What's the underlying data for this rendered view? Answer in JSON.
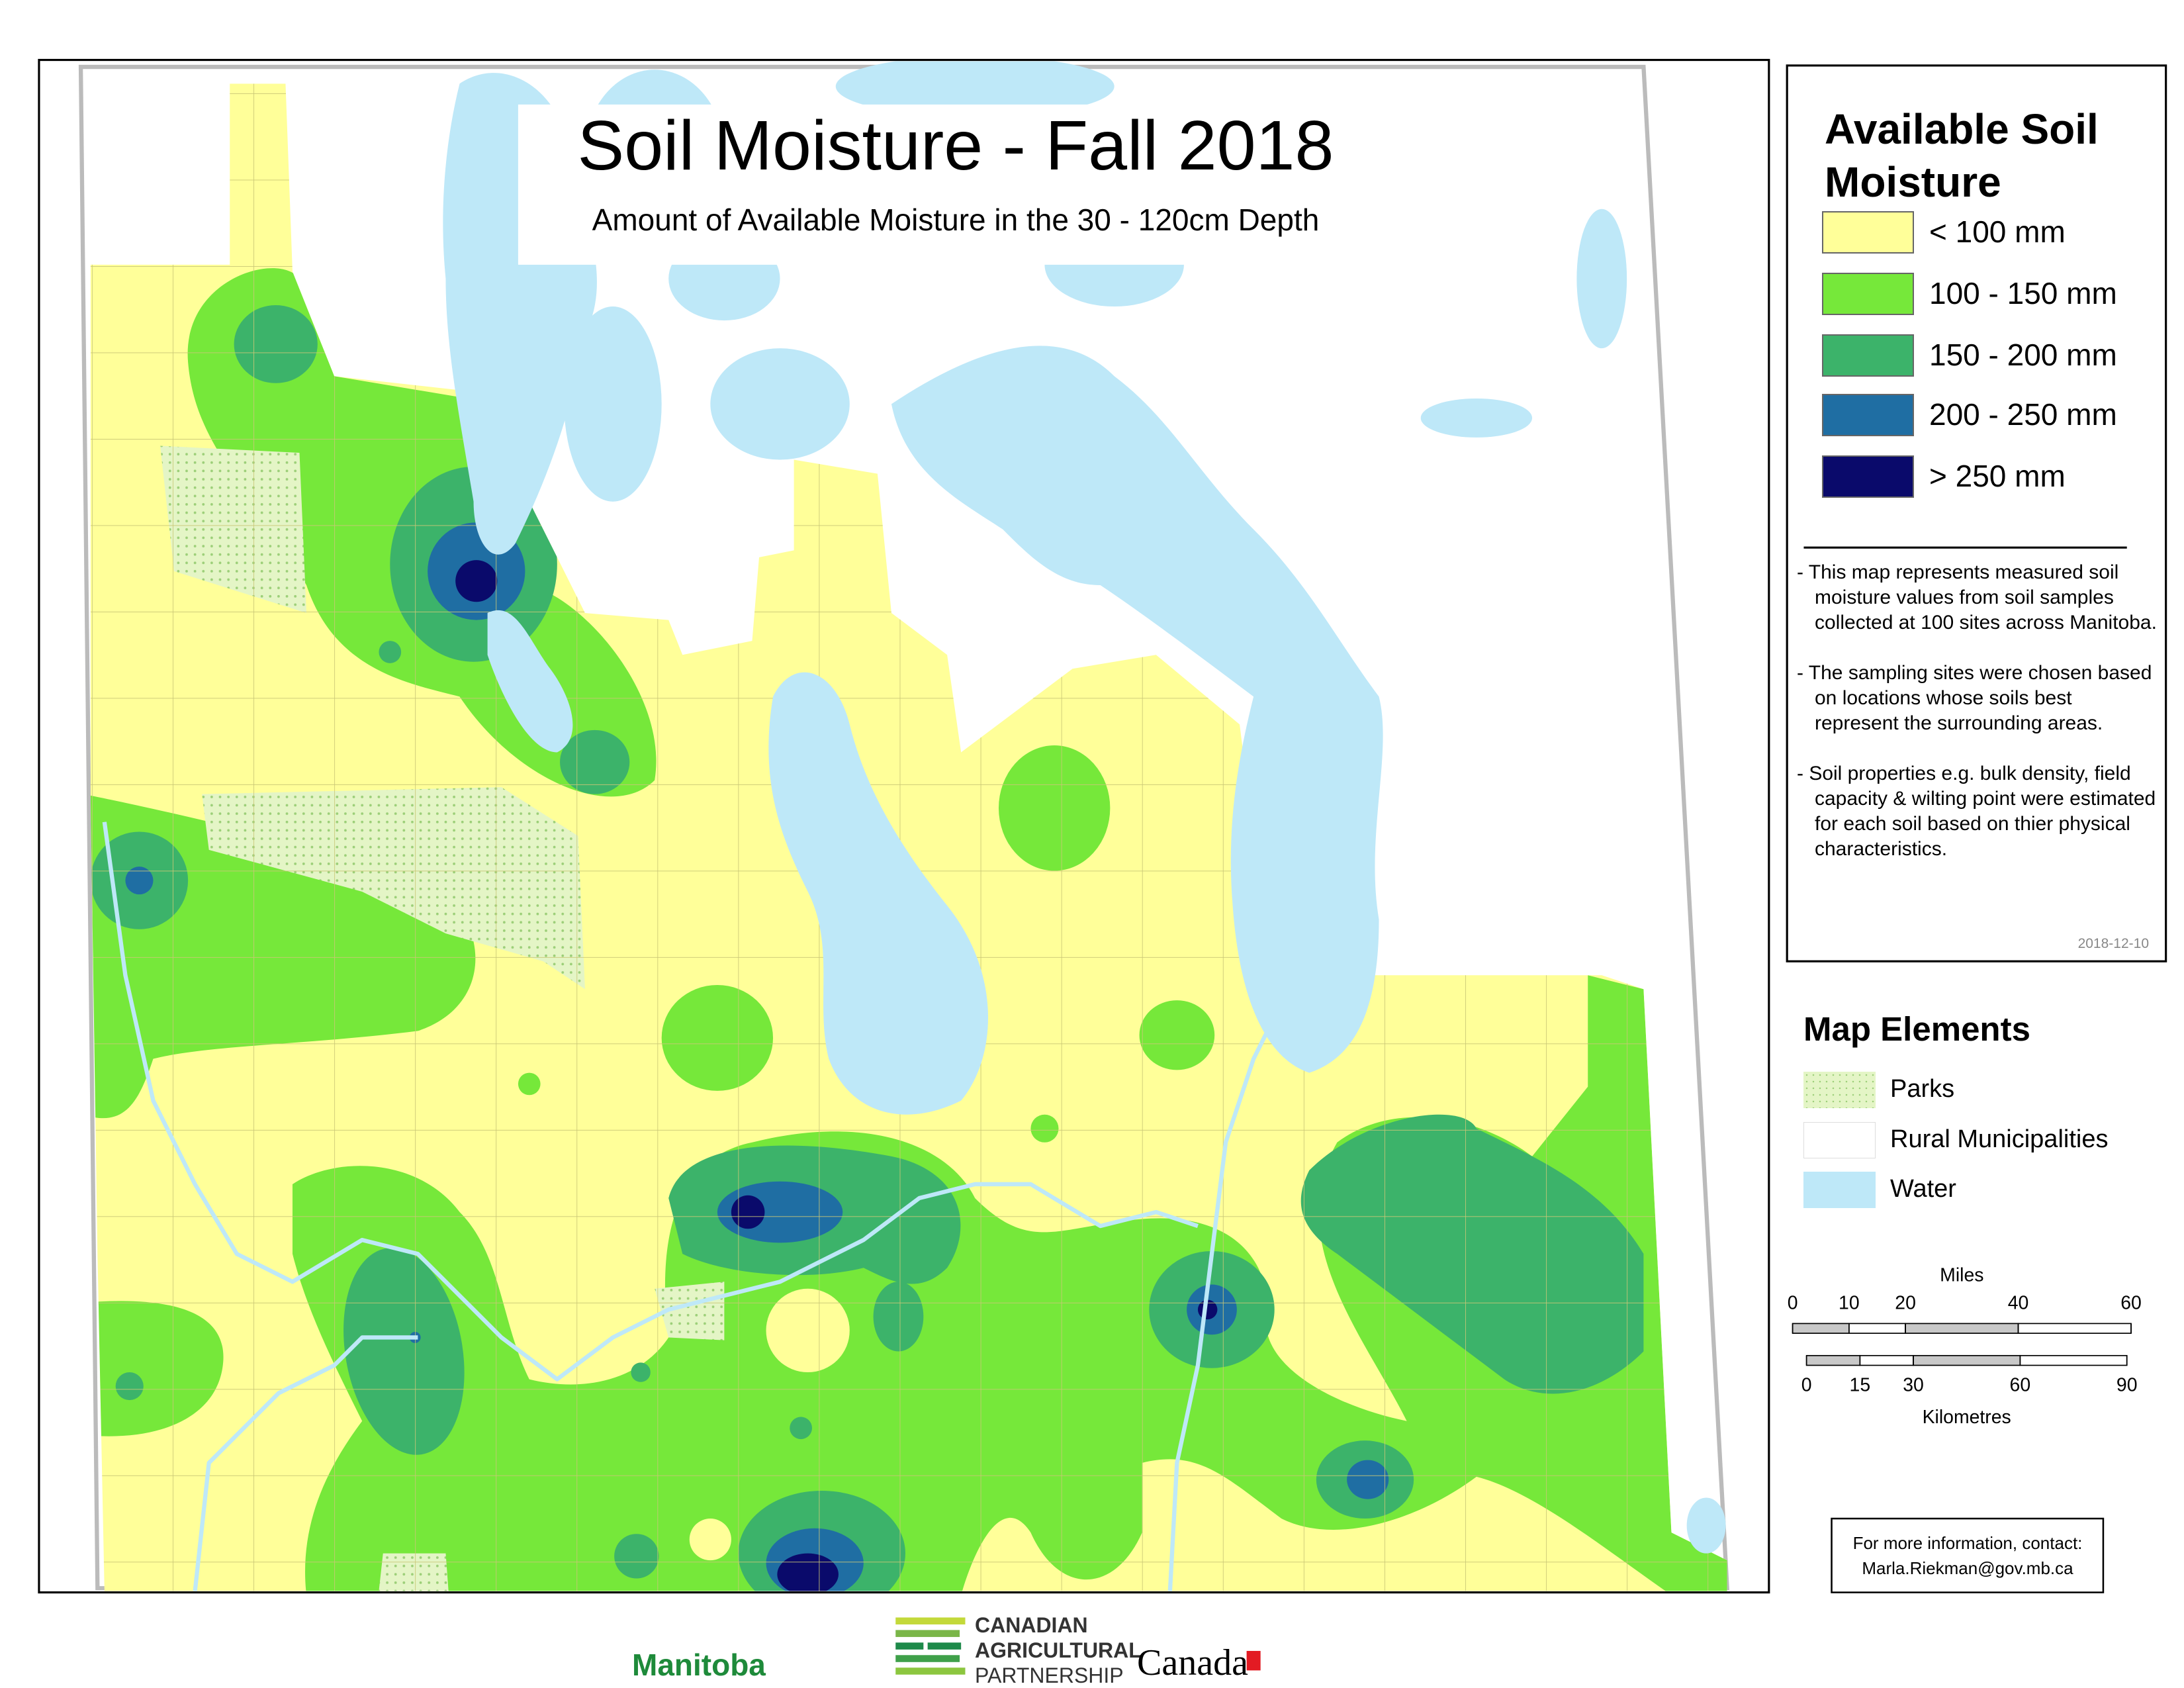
{
  "header": {
    "title": "Soil Moisture - Fall 2018",
    "subtitle": "Amount of Available Moisture in the 30 - 120cm Depth"
  },
  "legend": {
    "title": "Available Soil Moisture",
    "items": [
      {
        "label": "< 100 mm",
        "color": "#ffff99"
      },
      {
        "label": "100 - 150 mm",
        "color": "#76e83a"
      },
      {
        "label": "150 - 200 mm",
        "color": "#3cb36a"
      },
      {
        "label": "200 - 250 mm",
        "color": "#1f6ea3"
      },
      {
        "label": "> 250 mm",
        "color": "#0a0a6b"
      }
    ],
    "notes": [
      "- This map represents measured soil moisture values from soil samples collected at 100 sites across Manitoba.",
      "- The sampling sites were chosen based on locations whose soils best represent the surrounding areas.",
      "- Soil properties e.g. bulk density, field capacity & wilting point were estimated for each soil based on thier physical characteristics."
    ],
    "date": "2018-12-10"
  },
  "map_elements": {
    "title": "Map Elements",
    "items": [
      {
        "label": "Parks",
        "color": "#e4f5c6"
      },
      {
        "label": "Rural Municipalities",
        "color": "#ffffff"
      },
      {
        "label": "Water",
        "color": "#bee8f8"
      }
    ]
  },
  "scale": {
    "miles": {
      "label": "Miles",
      "ticks": [
        0,
        10,
        20,
        40,
        60
      ]
    },
    "kilometres": {
      "label": "Kilometres",
      "ticks": [
        0,
        15,
        30,
        60,
        90
      ]
    }
  },
  "contact": {
    "heading": "For more information, contact:",
    "email": "Marla.Riekman@gov.mb.ca"
  },
  "logos": {
    "manitoba": "Manitoba",
    "partnership": [
      "CANADIAN",
      "AGRICULTURAL",
      "PARTNERSHIP"
    ],
    "canada": "Canada"
  }
}
